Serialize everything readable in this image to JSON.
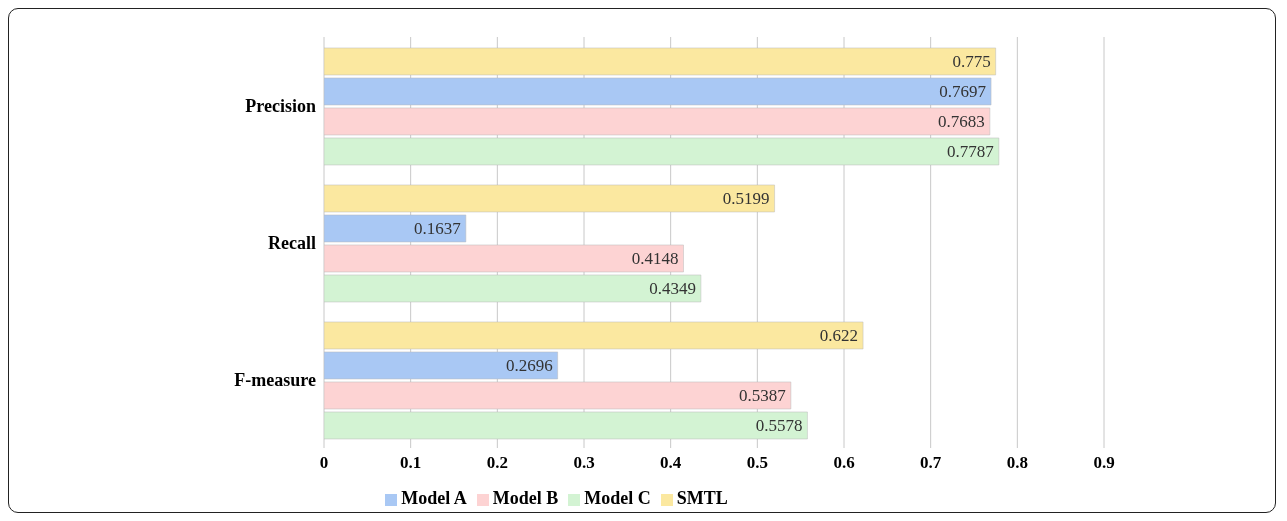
{
  "chart_data": {
    "type": "bar",
    "orientation": "horizontal",
    "categories": [
      "Precision",
      "Recall",
      "F-measure"
    ],
    "series": [
      {
        "name": "SMTL",
        "color": "#fbe8a0",
        "values": [
          0.775,
          0.5199,
          0.622
        ]
      },
      {
        "name": "Model A",
        "color": "#a9c8f4",
        "values": [
          0.7697,
          0.1637,
          0.2696
        ]
      },
      {
        "name": "Model B",
        "color": "#fdd3d3",
        "values": [
          0.7683,
          0.4148,
          0.5387
        ]
      },
      {
        "name": "Model C",
        "color": "#d3f3d3",
        "values": [
          0.7787,
          0.4349,
          0.5578
        ]
      }
    ],
    "xlim": [
      0,
      0.9
    ],
    "xticks": [
      0,
      0.1,
      0.2,
      0.3,
      0.4,
      0.5,
      0.6,
      0.7,
      0.8,
      0.9
    ],
    "grid": "x",
    "legend": "bottom",
    "data_labels": true
  }
}
